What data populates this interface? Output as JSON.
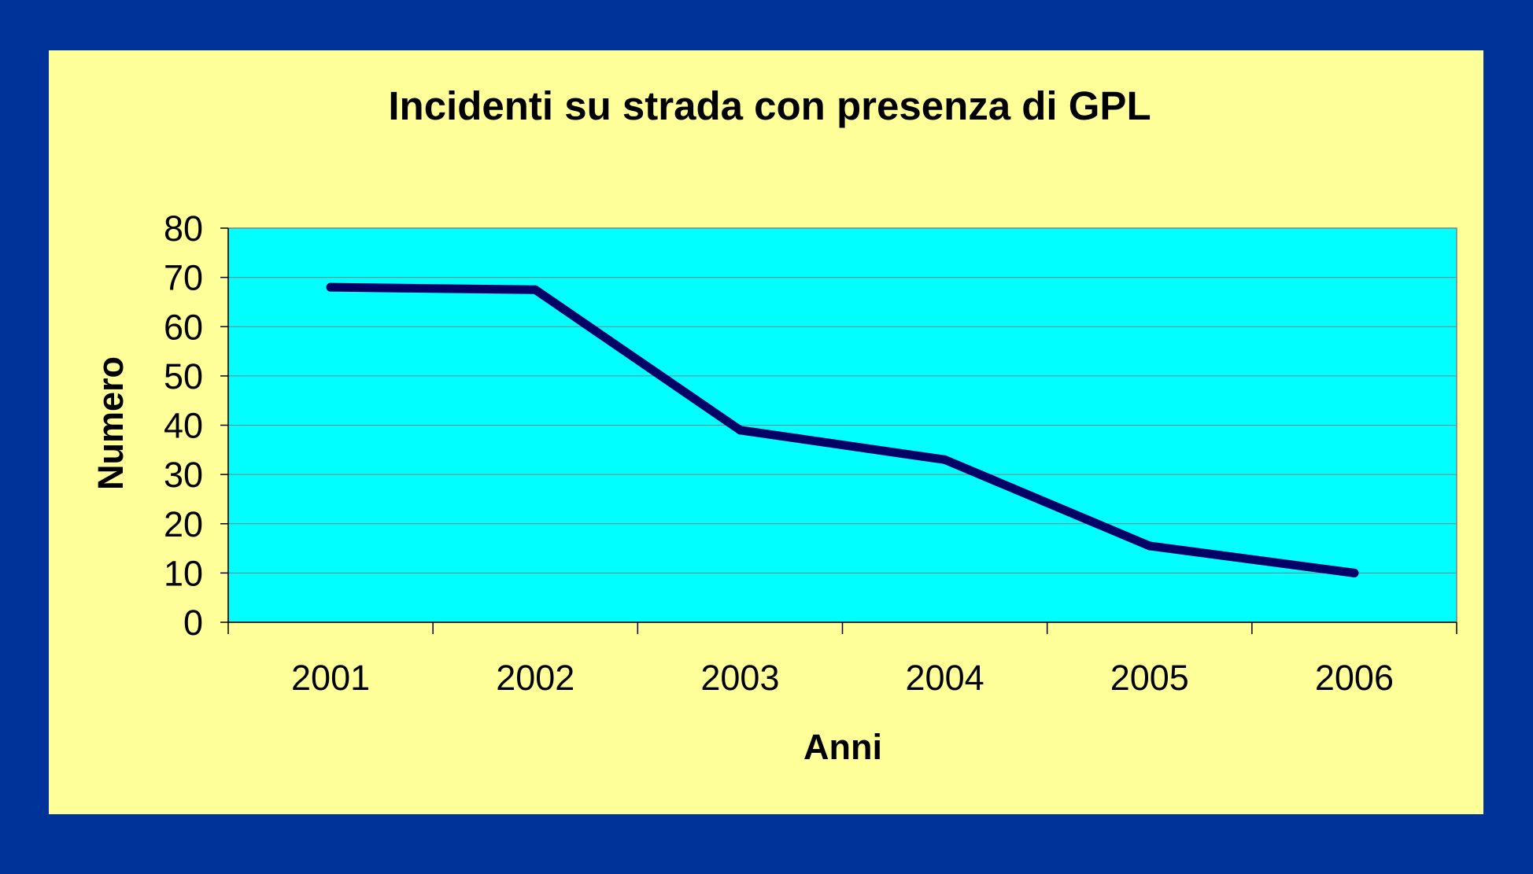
{
  "colors": {
    "background": "#003399",
    "chart_area": "#FFFF99",
    "plot_area": "#00FFFF",
    "series_line": "#000066",
    "gridline": "#808080"
  },
  "chart_data": {
    "type": "line",
    "title": "Incidenti su strada con presenza di GPL",
    "xlabel": "Anni",
    "ylabel": "Numero",
    "categories": [
      "2001",
      "2002",
      "2003",
      "2004",
      "2005",
      "2006"
    ],
    "series": [
      {
        "values": [
          68,
          67.5,
          39,
          33,
          15.5,
          10
        ]
      }
    ],
    "ylim": [
      0,
      80
    ],
    "yticks": [
      "0",
      "10",
      "20",
      "30",
      "40",
      "50",
      "60",
      "70",
      "80"
    ],
    "grid": true,
    "legend": "none"
  }
}
